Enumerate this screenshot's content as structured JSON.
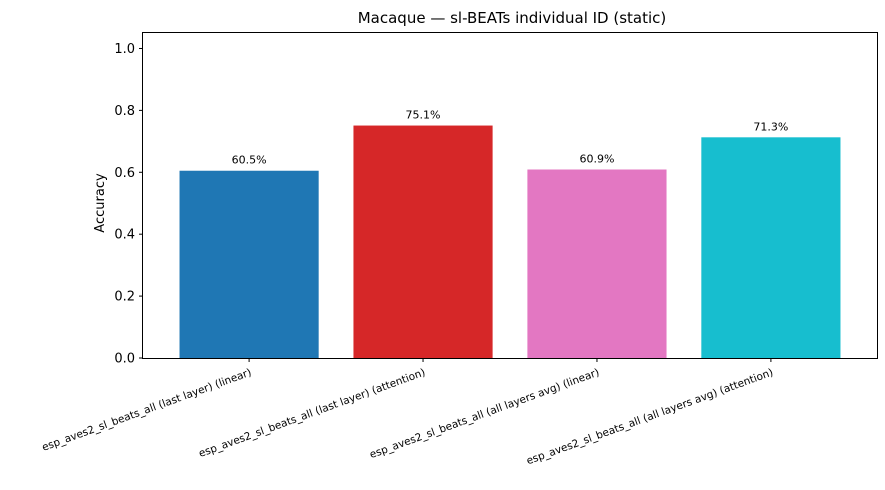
{
  "chart_data": {
    "type": "bar",
    "title": "Macaque — sl-BEATs individual ID (static)",
    "xlabel": "",
    "ylabel": "Accuracy",
    "ylim": [
      0,
      1.05
    ],
    "yticks": [
      "0.0",
      "0.2",
      "0.4",
      "0.6",
      "0.8",
      "1.0"
    ],
    "categories": [
      "esp_aves2_sl_beats_all (last layer) (linear)",
      "esp_aves2_sl_beats_all (last layer) (attention)",
      "esp_aves2_sl_beats_all (all layers avg) (linear)",
      "esp_aves2_sl_beats_all (all layers avg) (attention)"
    ],
    "values": [
      0.605,
      0.751,
      0.609,
      0.713
    ],
    "data_labels": [
      "60.5%",
      "75.1%",
      "60.9%",
      "71.3%"
    ],
    "colors": [
      "#1f77b4",
      "#d62728",
      "#e377c2",
      "#17becf"
    ],
    "grid": false,
    "legend": "none"
  }
}
